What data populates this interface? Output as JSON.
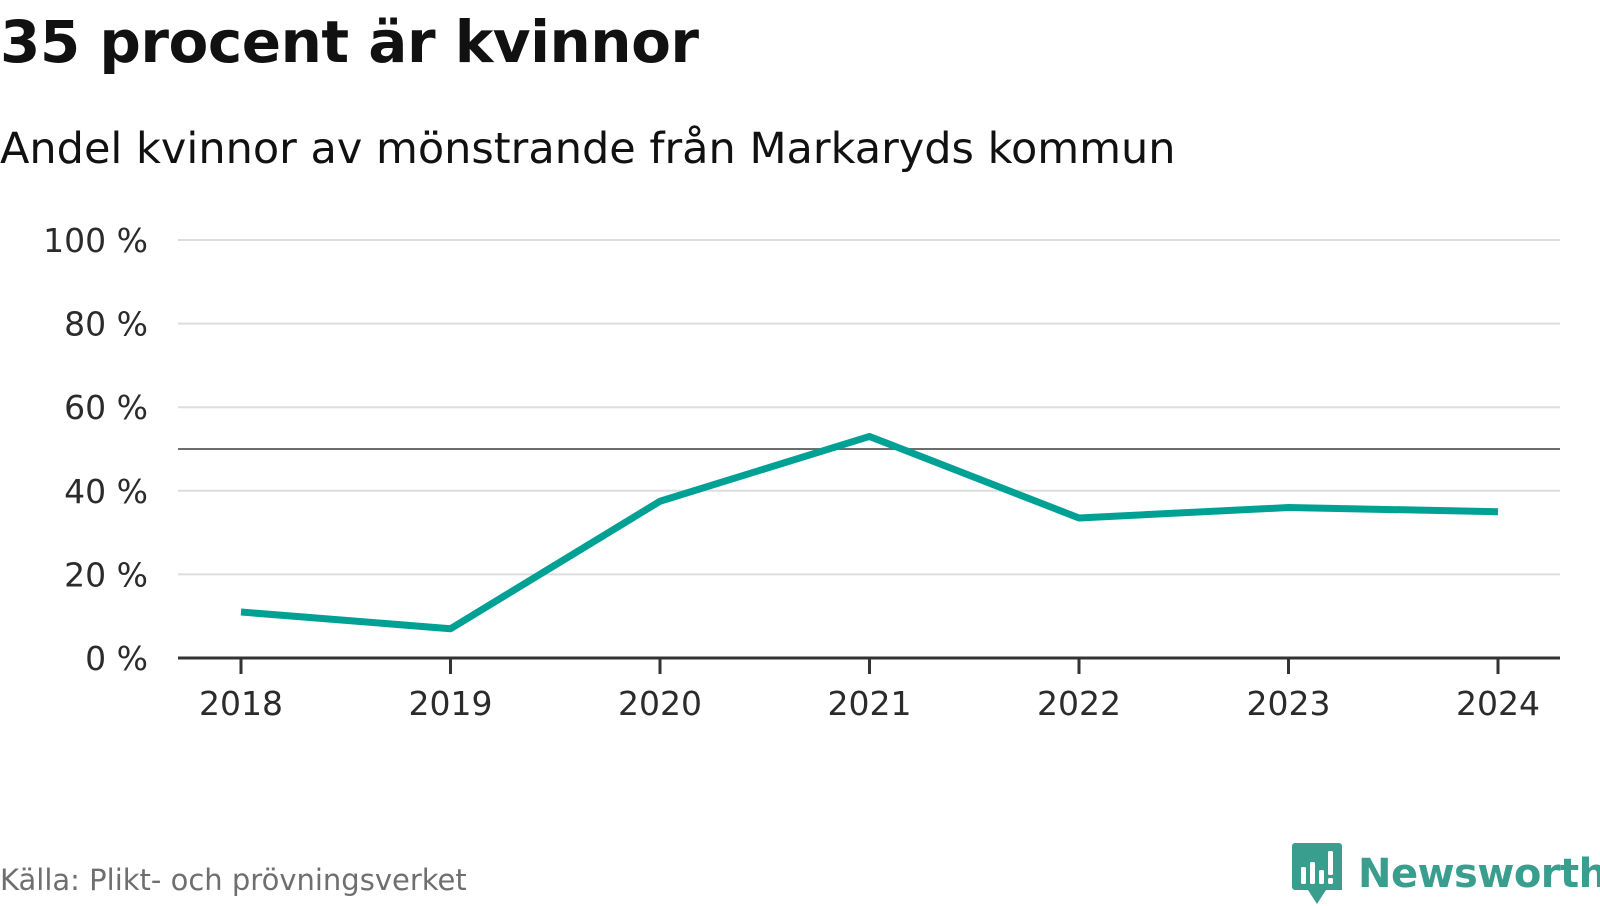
{
  "title": "35 procent är kvinnor",
  "subtitle": "Andel kvinnor av mönstrande från Markaryds kommun",
  "source": "Källa: Plikt- och prövningsverket",
  "brand": {
    "name": "Newsworthy",
    "icon": "newsworthy-logo-icon",
    "color": "#3a9e8f"
  },
  "colors": {
    "series": "#00a195",
    "grid": "#dddddd",
    "reference": "#6d6d6d",
    "axis": "#333333"
  },
  "chart_data": {
    "type": "line",
    "title": "35 procent är kvinnor",
    "subtitle": "Andel kvinnor av mönstrande från Markaryds kommun",
    "xlabel": "",
    "ylabel": "",
    "x": [
      "2018",
      "2019",
      "2020",
      "2021",
      "2022",
      "2023",
      "2024"
    ],
    "series": [
      {
        "name": "Andel kvinnor",
        "values": [
          11,
          7,
          37.5,
          53,
          33.5,
          36,
          35
        ]
      }
    ],
    "ylim": [
      0,
      100
    ],
    "yticks": [
      0,
      20,
      40,
      60,
      80,
      100
    ],
    "ytick_labels": [
      "0 %",
      "20 %",
      "40 %",
      "60 %",
      "80 %",
      "100 %"
    ],
    "reference_line": 50,
    "grid": true,
    "legend": "none"
  }
}
